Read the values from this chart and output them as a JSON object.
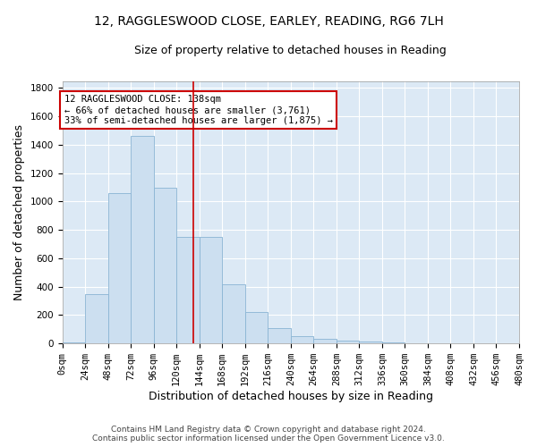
{
  "title1": "12, RAGGLESWOOD CLOSE, EARLEY, READING, RG6 7LH",
  "title2": "Size of property relative to detached houses in Reading",
  "xlabel": "Distribution of detached houses by size in Reading",
  "ylabel": "Number of detached properties",
  "bar_values": [
    10,
    350,
    1060,
    1460,
    1100,
    750,
    750,
    420,
    220,
    110,
    50,
    35,
    20,
    15,
    5,
    2,
    1,
    0,
    0,
    0
  ],
  "bin_edges": [
    0,
    24,
    48,
    72,
    96,
    120,
    144,
    168,
    192,
    216,
    240,
    264,
    288,
    312,
    336,
    360,
    384,
    408,
    432,
    456,
    480
  ],
  "bar_color": "#ccdff0",
  "bar_edgecolor": "#8ab4d4",
  "vline_x": 138,
  "vline_color": "#cc0000",
  "ylim": [
    0,
    1850
  ],
  "yticks": [
    0,
    200,
    400,
    600,
    800,
    1000,
    1200,
    1400,
    1600,
    1800
  ],
  "annotation_text": "12 RAGGLESWOOD CLOSE: 138sqm\n← 66% of detached houses are smaller (3,761)\n33% of semi-detached houses are larger (1,875) →",
  "annotation_box_facecolor": "#ffffff",
  "annotation_box_edgecolor": "#cc0000",
  "footer_text": "Contains HM Land Registry data © Crown copyright and database right 2024.\nContains public sector information licensed under the Open Government Licence v3.0.",
  "plot_bg_color": "#dce9f5",
  "fig_bg_color": "#ffffff",
  "grid_color": "#ffffff",
  "title_fontsize": 10,
  "subtitle_fontsize": 9,
  "tick_label_fontsize": 7.5,
  "axis_label_fontsize": 9,
  "footer_fontsize": 6.5
}
